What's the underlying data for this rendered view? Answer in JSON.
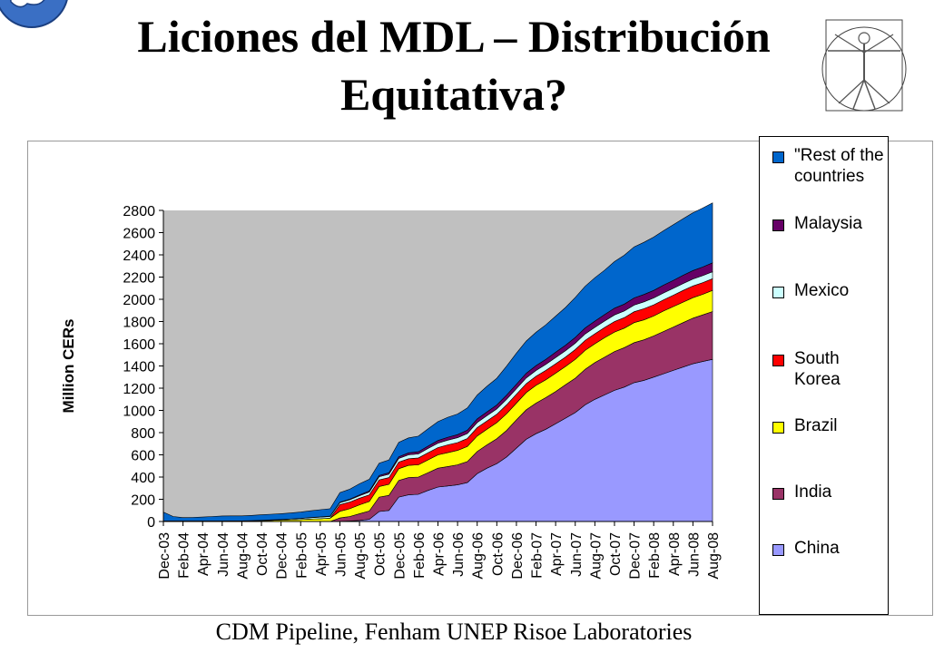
{
  "slide": {
    "title_line1": "Liciones del MDL – Distribución",
    "title_line2": "Equitativa?",
    "caption": "CDM Pipeline, Fenham UNEP Risoe Laboratories"
  },
  "chart_data": {
    "type": "area",
    "stacked": true,
    "ylabel": "Million CERs",
    "ylim": [
      0,
      2800
    ],
    "ytick_step": 200,
    "plot_background": "#c0c0c0",
    "legend_position": "right",
    "x": [
      "Dec-03",
      "Jan-04",
      "Feb-04",
      "Mar-04",
      "Apr-04",
      "May-04",
      "Jun-04",
      "Jul-04",
      "Aug-04",
      "Sep-04",
      "Oct-04",
      "Nov-04",
      "Dec-04",
      "Jan-05",
      "Feb-05",
      "Mar-05",
      "Apr-05",
      "May-05",
      "Jun-05",
      "Jul-05",
      "Aug-05",
      "Sep-05",
      "Oct-05",
      "Nov-05",
      "Dec-05",
      "Jan-06",
      "Feb-06",
      "Mar-06",
      "Apr-06",
      "May-06",
      "Jun-06",
      "Jul-06",
      "Aug-06",
      "Sep-06",
      "Oct-06",
      "Nov-06",
      "Dec-06",
      "Jan-07",
      "Feb-07",
      "Mar-07",
      "Apr-07",
      "May-07",
      "Jun-07",
      "Jul-07",
      "Aug-07",
      "Sep-07",
      "Oct-07",
      "Nov-07",
      "Dec-07",
      "Jan-08",
      "Feb-08",
      "Mar-08",
      "Apr-08",
      "May-08",
      "Jun-08",
      "Jul-08",
      "Aug-08"
    ],
    "x_tick_labels": [
      "Dec-03",
      "Feb-04",
      "Apr-04",
      "Jun-04",
      "Aug-04",
      "Oct-04",
      "Dec-04",
      "Feb-05",
      "Apr-05",
      "Jun-05",
      "Aug-05",
      "Oct-05",
      "Dec-05",
      "Feb-06",
      "Apr-06",
      "Jun-06",
      "Aug-06",
      "Oct-06",
      "Dec-06",
      "Feb-07",
      "Apr-07",
      "Jun-07",
      "Aug-07",
      "Oct-07",
      "Dec-07",
      "Feb-08",
      "Apr-08",
      "Jun-08",
      "Aug-08"
    ],
    "series": [
      {
        "name": "China",
        "color": "#9999ff",
        "values": [
          0,
          0,
          0,
          0,
          0,
          0,
          0,
          0,
          0,
          0,
          0,
          0,
          0,
          0,
          0,
          0,
          0,
          0,
          2,
          5,
          10,
          20,
          90,
          100,
          220,
          240,
          245,
          280,
          310,
          320,
          330,
          350,
          430,
          480,
          520,
          580,
          660,
          740,
          790,
          830,
          880,
          930,
          980,
          1050,
          1100,
          1140,
          1180,
          1210,
          1250,
          1270,
          1300,
          1330,
          1360,
          1390,
          1420,
          1440,
          1460
        ]
      },
      {
        "name": "India",
        "color": "#993366",
        "values": [
          0,
          0,
          0,
          0,
          0,
          0,
          0,
          0,
          0,
          0,
          0,
          0,
          0,
          0,
          0,
          0,
          0,
          0,
          30,
          40,
          60,
          75,
          130,
          135,
          150,
          155,
          155,
          160,
          170,
          175,
          180,
          190,
          200,
          210,
          225,
          240,
          255,
          265,
          275,
          285,
          290,
          300,
          310,
          320,
          330,
          340,
          350,
          355,
          360,
          365,
          370,
          380,
          390,
          400,
          410,
          420,
          430
        ]
      },
      {
        "name": "Brazil",
        "color": "#ffff00",
        "values": [
          5,
          5,
          5,
          5,
          5,
          5,
          5,
          6,
          6,
          6,
          8,
          10,
          12,
          15,
          18,
          22,
          25,
          30,
          60,
          70,
          80,
          85,
          95,
          100,
          105,
          110,
          110,
          115,
          120,
          125,
          130,
          135,
          140,
          140,
          145,
          150,
          150,
          155,
          160,
          160,
          165,
          165,
          170,
          170,
          170,
          175,
          175,
          175,
          180,
          180,
          180,
          185,
          185,
          185,
          185,
          185,
          190
        ]
      },
      {
        "name": "South Korea",
        "color": "#ff0000",
        "values": [
          0,
          0,
          0,
          0,
          0,
          0,
          0,
          0,
          0,
          0,
          0,
          0,
          0,
          0,
          0,
          0,
          0,
          0,
          60,
          60,
          60,
          60,
          60,
          60,
          60,
          60,
          62,
          65,
          65,
          70,
          70,
          72,
          75,
          75,
          75,
          80,
          80,
          80,
          82,
          85,
          85,
          85,
          88,
          90,
          90,
          92,
          95,
          95,
          98,
          100,
          100,
          100,
          102,
          105,
          105,
          105,
          105
        ]
      },
      {
        "name": "Mexico",
        "color": "#ccffff",
        "values": [
          0,
          0,
          0,
          0,
          0,
          0,
          0,
          0,
          0,
          2,
          3,
          5,
          6,
          8,
          10,
          12,
          14,
          15,
          18,
          20,
          22,
          25,
          28,
          30,
          32,
          35,
          36,
          38,
          40,
          42,
          44,
          45,
          46,
          48,
          48,
          50,
          50,
          52,
          52,
          54,
          55,
          56,
          57,
          58,
          58,
          58,
          60,
          60,
          60,
          62,
          62,
          62,
          62,
          62,
          63,
          63,
          63
        ]
      },
      {
        "name": "Malaysia",
        "color": "#660066",
        "values": [
          0,
          0,
          0,
          0,
          0,
          0,
          0,
          0,
          0,
          0,
          0,
          0,
          0,
          0,
          0,
          2,
          3,
          4,
          5,
          6,
          8,
          10,
          12,
          14,
          16,
          18,
          20,
          22,
          24,
          26,
          28,
          30,
          32,
          34,
          36,
          38,
          40,
          42,
          44,
          46,
          48,
          50,
          52,
          54,
          56,
          58,
          60,
          62,
          64,
          66,
          68,
          70,
          72,
          74,
          76,
          78,
          80
        ]
      },
      {
        "name": "\"Rest of the countries",
        "color": "#0066cc",
        "values": [
          80,
          40,
          30,
          32,
          35,
          40,
          45,
          45,
          45,
          47,
          49,
          50,
          52,
          54,
          57,
          60,
          64,
          66,
          85,
          90,
          100,
          105,
          110,
          115,
          130,
          135,
          140,
          155,
          170,
          180,
          185,
          200,
          215,
          230,
          240,
          260,
          280,
          290,
          300,
          310,
          325,
          340,
          360,
          375,
          390,
          400,
          420,
          440,
          460,
          470,
          480,
          490,
          500,
          510,
          520,
          530,
          540
        ]
      }
    ]
  },
  "icons": {
    "top_left": "globe-puzzle-icon",
    "top_right": "vitruvian-man-icon"
  }
}
